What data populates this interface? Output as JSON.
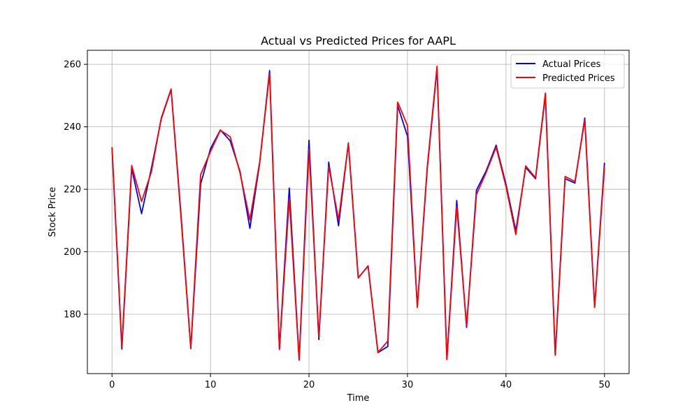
{
  "chart_data": {
    "type": "line",
    "title": "Actual vs Predicted Prices for AAPL",
    "xlabel": "Time",
    "ylabel": "Stock Price",
    "xlim": [
      -2.5,
      52.5
    ],
    "ylim": [
      161,
      264.5
    ],
    "xticks": [
      0,
      10,
      20,
      30,
      40,
      50
    ],
    "yticks": [
      180,
      200,
      220,
      240,
      260
    ],
    "grid": true,
    "legend_position": "top-right",
    "x": [
      0,
      1,
      2,
      3,
      4,
      5,
      6,
      7,
      8,
      9,
      10,
      11,
      12,
      13,
      14,
      15,
      16,
      17,
      18,
      19,
      20,
      21,
      22,
      23,
      24,
      25,
      26,
      27,
      28,
      29,
      30,
      31,
      32,
      33,
      34,
      35,
      36,
      37,
      38,
      39,
      40,
      41,
      42,
      43,
      44,
      45,
      46,
      47,
      48,
      49,
      50
    ],
    "series": [
      {
        "name": "Actual Prices",
        "color": "#0000ff",
        "values": [
          233.3,
          168.9,
          226.7,
          212.2,
          226.7,
          242.5,
          251.9,
          212.2,
          169.0,
          221.7,
          233.0,
          239.0,
          235.5,
          225.7,
          207.5,
          228.5,
          258.0,
          168.9,
          220.4,
          165.3,
          235.7,
          171.9,
          228.7,
          208.3,
          234.8,
          191.6,
          195.5,
          167.7,
          169.7,
          246.8,
          237.0,
          182.4,
          226.3,
          258.7,
          165.5,
          216.4,
          175.8,
          219.7,
          226.0,
          234.1,
          221.6,
          206.7,
          227.0,
          223.4,
          250.1,
          166.9,
          223.4,
          222.0,
          242.8,
          182.4,
          228.5
        ]
      },
      {
        "name": "Predicted Prices",
        "color": "#ff0000",
        "values": [
          233.5,
          169.6,
          227.6,
          216.1,
          225.6,
          242.8,
          252.1,
          211.2,
          169.2,
          224.7,
          232.1,
          238.9,
          236.8,
          225.2,
          210.2,
          228.9,
          257.0,
          168.7,
          217.1,
          165.3,
          232.8,
          172.8,
          227.4,
          210.2,
          234.6,
          191.7,
          195.4,
          167.8,
          171.4,
          247.9,
          240.4,
          182.2,
          226.9,
          259.4,
          165.5,
          214.6,
          176.4,
          218.3,
          225.5,
          233.5,
          220.9,
          205.5,
          227.5,
          223.7,
          250.8,
          167.0,
          224.1,
          222.5,
          242.2,
          182.2,
          227.2
        ]
      }
    ]
  }
}
